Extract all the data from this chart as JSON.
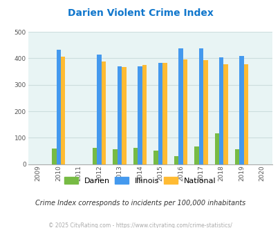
{
  "title": "Darien Violent Crime Index",
  "all_years": [
    2009,
    2010,
    2011,
    2012,
    2013,
    2014,
    2015,
    2016,
    2017,
    2018,
    2019,
    2020
  ],
  "data_years": [
    2010,
    2012,
    2013,
    2014,
    2015,
    2016,
    2017,
    2018,
    2019
  ],
  "darien": [
    60,
    62,
    57,
    62,
    52,
    30,
    67,
    117,
    57
  ],
  "illinois": [
    433,
    415,
    371,
    369,
    383,
    438,
    438,
    405,
    408
  ],
  "national": [
    406,
    387,
    366,
    375,
    383,
    397,
    394,
    379,
    379
  ],
  "bar_colors": {
    "darien": "#77bb44",
    "illinois": "#4499ee",
    "national": "#ffbb33"
  },
  "ylim": [
    0,
    500
  ],
  "yticks": [
    0,
    100,
    200,
    300,
    400,
    500
  ],
  "background_color": "#e8f4f4",
  "grid_color": "#ccdddd",
  "title_color": "#1177cc",
  "subtitle": "Crime Index corresponds to incidents per 100,000 inhabitants",
  "footer": "© 2025 CityRating.com - https://www.cityrating.com/crime-statistics/",
  "bar_width": 0.22,
  "fig_bg": "#ffffff"
}
